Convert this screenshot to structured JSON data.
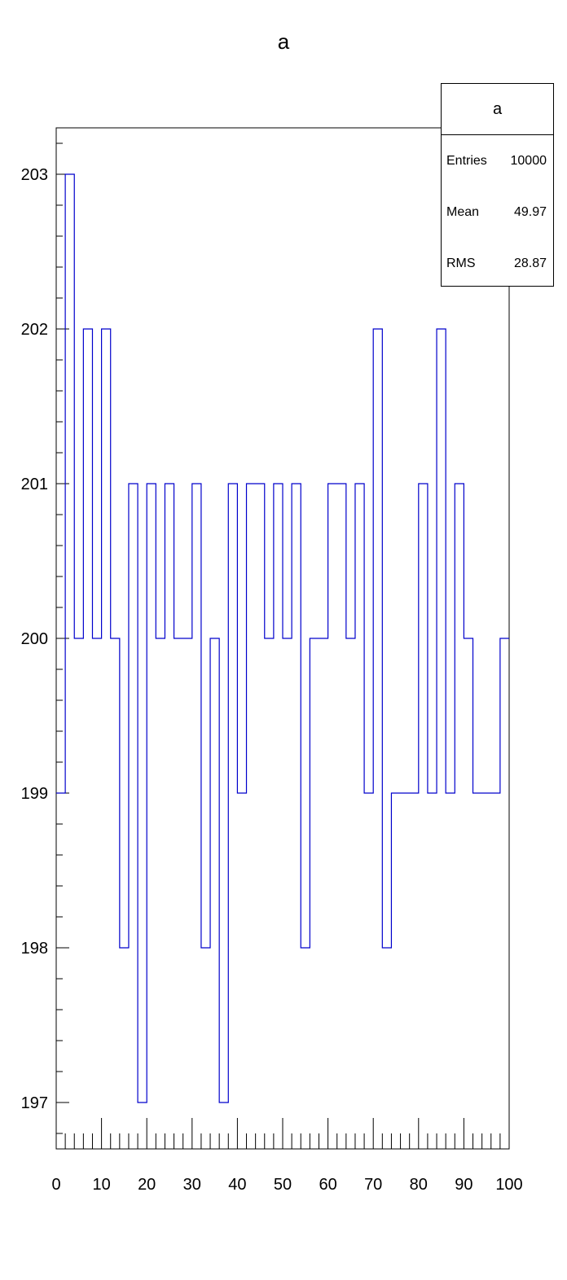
{
  "chart_data": {
    "type": "histogram",
    "title": "a",
    "x_range": [
      0,
      100
    ],
    "y_range": [
      196.7,
      203.3
    ],
    "bin_width": 2,
    "bin_edges_start": 0,
    "values": [
      199,
      203,
      200,
      202,
      200,
      202,
      200,
      198,
      201,
      197,
      201,
      200,
      201,
      200,
      200,
      201,
      198,
      200,
      197,
      201,
      199,
      201,
      201,
      200,
      201,
      200,
      201,
      198,
      200,
      200,
      201,
      201,
      200,
      201,
      199,
      202,
      198,
      199,
      199,
      199,
      201,
      199,
      202,
      199,
      201,
      200,
      199,
      199,
      199,
      200
    ],
    "x_ticks": [
      "0",
      "10",
      "20",
      "30",
      "40",
      "50",
      "60",
      "70",
      "80",
      "90",
      "100"
    ],
    "y_ticks": [
      "197",
      "198",
      "199",
      "200",
      "201",
      "202",
      "203"
    ],
    "line_color": "#0000cc",
    "grid": false,
    "legend_position": "top-right",
    "stats": {
      "title": "a",
      "rows": [
        {
          "label": "Entries",
          "value": "10000"
        },
        {
          "label": "Mean",
          "value": "49.97"
        },
        {
          "label": "RMS",
          "value": "28.87"
        }
      ]
    }
  }
}
